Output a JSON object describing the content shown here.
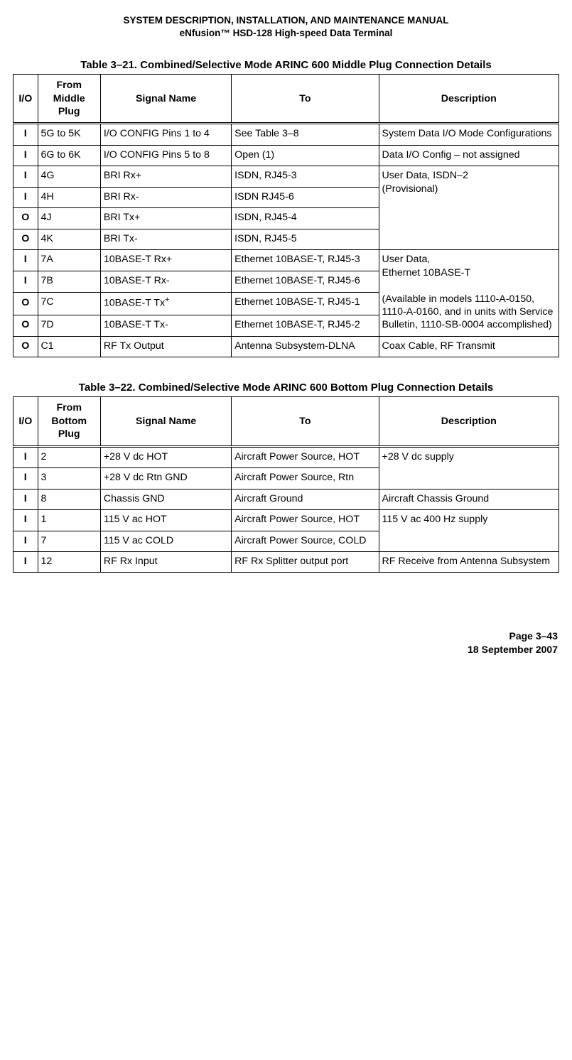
{
  "header": {
    "line1": "SYSTEM DESCRIPTION, INSTALLATION, AND MAINTENANCE MANUAL",
    "line2": "eNfusion™ HSD-128 High-speed Data Terminal"
  },
  "table1": {
    "title": "Table 3–21. Combined/Selective Mode ARINC 600 Middle Plug Connection Details",
    "columns": {
      "io": "I/O",
      "from": "From Middle Plug",
      "signal": "Signal Name",
      "to": "To",
      "desc": "Description"
    },
    "rows": {
      "r1": {
        "io": "I",
        "from": "5G to 5K",
        "signal": "I/O CONFIG Pins 1 to 4",
        "to": "See Table 3–8",
        "desc": "System Data I/O Mode Configurations"
      },
      "r2": {
        "io": "I",
        "from": "6G to 6K",
        "signal": "I/O CONFIG Pins 5 to 8",
        "to": "Open (1)",
        "desc": "Data I/O Config – not assigned"
      },
      "r3": {
        "io": "I",
        "from": "4G",
        "signal": "BRI Rx+",
        "to": "ISDN, RJ45-3"
      },
      "r4": {
        "io": "I",
        "from": "4H",
        "signal": "BRI Rx-",
        "to": "ISDN RJ45-6"
      },
      "r5": {
        "io": "O",
        "from": "4J",
        "signal": "BRI Tx+",
        "to": "ISDN, RJ45-4"
      },
      "r6": {
        "io": "O",
        "from": "4K",
        "signal": "BRI Tx-",
        "to": "ISDN, RJ45-5"
      },
      "groupA_desc_line1": "User Data, ISDN–2",
      "groupA_desc_line2": "(Provisional)",
      "r7": {
        "io": "I",
        "from": "7A",
        "signal": "10BASE-T Rx+",
        "to": "Ethernet 10BASE-T, RJ45-3"
      },
      "r8": {
        "io": "I",
        "from": "7B",
        "signal": "10BASE-T Rx-",
        "to": "Ethernet 10BASE-T, RJ45-6"
      },
      "r9": {
        "io": "O",
        "from": "7C",
        "signal_pre": "10BASE-T Tx",
        "signal_sup": "+",
        "to": "Ethernet 10BASE-T, RJ45-1"
      },
      "r10": {
        "io": "O",
        "from": "7D",
        "signal": "10BASE-T Tx-",
        "to": "Ethernet 10BASE-T, RJ45-2"
      },
      "groupB_desc_line1": "User Data,",
      "groupB_desc_line2": "Ethernet 10BASE-T",
      "groupB_desc_line3": "(Available in models 1110-A-0150,",
      "groupB_desc_line4": "1110-A-0160, and in units with Service Bulletin, 1110-SB-0004 accomplished)",
      "r11": {
        "io": "O",
        "from": "C1",
        "signal": "RF Tx Output",
        "to": "Antenna Subsystem-DLNA",
        "desc": "Coax Cable, RF Transmit"
      }
    }
  },
  "table2": {
    "title": "Table 3–22. Combined/Selective Mode ARINC 600 Bottom Plug Connection Details",
    "columns": {
      "io": "I/O",
      "from": "From Bottom Plug",
      "signal": "Signal Name",
      "to": "To",
      "desc": "Description"
    },
    "rows": {
      "r1": {
        "io": "I",
        "from": "2",
        "signal": "+28 V dc HOT",
        "to": "Aircraft Power Source, HOT"
      },
      "r2": {
        "io": "I",
        "from": "3",
        "signal": "+28 V dc Rtn GND",
        "to": "Aircraft Power Source, Rtn"
      },
      "groupA_desc": "+28 V dc supply",
      "r3": {
        "io": "I",
        "from": "8",
        "signal": "Chassis GND",
        "to": "Aircraft Ground",
        "desc": "Aircraft Chassis Ground"
      },
      "r4": {
        "io": "I",
        "from": "1",
        "signal": "115 V ac HOT",
        "to": "Aircraft Power Source, HOT"
      },
      "r5": {
        "io": "I",
        "from": "7",
        "signal": "115 V ac COLD",
        "to": "Aircraft Power Source, COLD"
      },
      "groupB_desc": "115 V ac 400 Hz supply",
      "r6": {
        "io": "I",
        "from": "12",
        "signal": "RF Rx Input",
        "to": "RF Rx Splitter output port",
        "desc": "RF Receive from Antenna Subsystem"
      }
    }
  },
  "footer": {
    "page": "Page 3–43",
    "date": "18 September 2007"
  }
}
